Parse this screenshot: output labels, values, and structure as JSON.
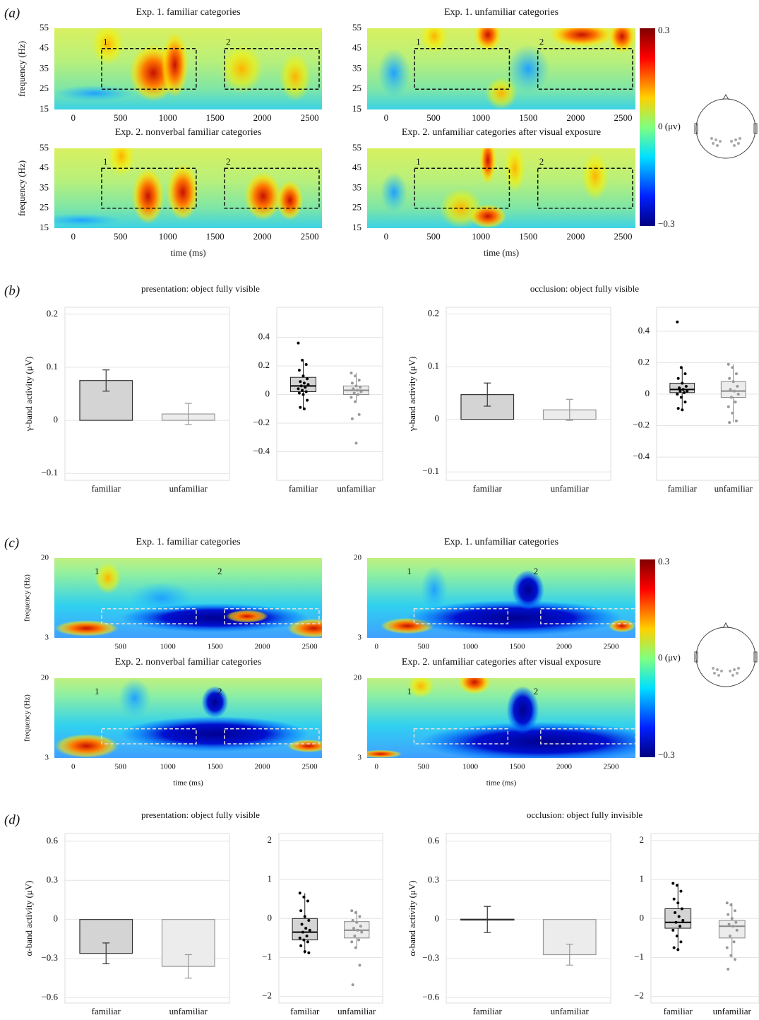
{
  "panel_labels": [
    "(a)",
    "(b)",
    "(c)",
    "(d)"
  ],
  "chart_data": [
    {
      "type": "heatmap",
      "title": "Exp. 1. familiar categories",
      "ylabel": "frequency (Hz)",
      "xlim": [
        -200,
        2630
      ],
      "xticks": [
        0,
        500,
        1000,
        1500,
        2000,
        2500
      ],
      "ylim": [
        15,
        55
      ],
      "yticks": [
        15,
        25,
        35,
        45,
        55
      ],
      "boxes": [
        {
          "label": "1",
          "xlim": [
            300,
            1300
          ],
          "ylim": [
            25,
            45
          ]
        },
        {
          "label": "2",
          "xlim": [
            1600,
            2600
          ],
          "ylim": [
            25,
            45
          ]
        }
      ]
    },
    {
      "type": "heatmap",
      "title": "Exp. 1. unfamiliar categories",
      "xlim": [
        -200,
        2630
      ],
      "xticks": [
        0,
        500,
        1000,
        1500,
        2000,
        2500
      ],
      "ylim": [
        15,
        55
      ],
      "yticks": [
        15,
        25,
        35,
        45,
        55
      ],
      "boxes": [
        {
          "label": "1",
          "xlim": [
            300,
            1300
          ],
          "ylim": [
            25,
            45
          ]
        },
        {
          "label": "2",
          "xlim": [
            1600,
            2600
          ],
          "ylim": [
            25,
            45
          ]
        }
      ]
    },
    {
      "type": "heatmap",
      "title": "Exp. 2. nonverbal familiar categories",
      "ylabel": "frequency (Hz)",
      "xlabel": "time (ms)",
      "xlim": [
        -200,
        2630
      ],
      "xticks": [
        0,
        500,
        1000,
        1500,
        2000,
        2500
      ],
      "ylim": [
        15,
        55
      ],
      "yticks": [
        15,
        25,
        35,
        45,
        55
      ],
      "boxes": [
        {
          "label": "1",
          "xlim": [
            300,
            1300
          ],
          "ylim": [
            25,
            45
          ]
        },
        {
          "label": "2",
          "xlim": [
            1600,
            2600
          ],
          "ylim": [
            25,
            45
          ]
        }
      ]
    },
    {
      "type": "heatmap",
      "title": "Exp. 2. unfamiliar categories after visual exposure",
      "xlabel": "time (ms)",
      "xlim": [
        -200,
        2630
      ],
      "xticks": [
        0,
        500,
        1000,
        1500,
        2000,
        2500
      ],
      "ylim": [
        15,
        55
      ],
      "yticks": [
        15,
        25,
        35,
        45,
        55
      ],
      "boxes": [
        {
          "label": "1",
          "xlim": [
            300,
            1300
          ],
          "ylim": [
            25,
            45
          ]
        },
        {
          "label": "2",
          "xlim": [
            1600,
            2600
          ],
          "ylim": [
            25,
            45
          ]
        }
      ]
    },
    {
      "type": "colorbar",
      "ylim": [
        -0.3,
        0.3
      ],
      "yticks": [
        {
          "value": -0.3,
          "label": "−0.3"
        },
        {
          "value": 0,
          "label": "0 (μv)"
        },
        0.3
      ]
    },
    {
      "type": "bar",
      "title": "presentation: object fully visible",
      "ylabel": "γ-band activity (μV)",
      "categories": [
        "familiar",
        "unfamiliar"
      ],
      "values": [
        0.075,
        0.012
      ],
      "errors": [
        0.02,
        0.02
      ],
      "colors": [
        "#d4d4d4",
        "#ececec"
      ],
      "edge_colors": [
        "#333333",
        "#999999"
      ],
      "ylim": [
        -0.113,
        0.213
      ],
      "yticks": [
        {
          "value": -0.1,
          "label": "−0.1"
        },
        0,
        0.1,
        0.2
      ],
      "grid": true
    },
    {
      "type": "box",
      "categories": [
        "familiar",
        "unfamiliar"
      ],
      "colors": [
        "#000000",
        "#999999"
      ],
      "ylim": [
        -0.6,
        0.61
      ],
      "yticks": [
        {
          "value": -0.4,
          "label": "−0.4"
        },
        {
          "value": -0.2,
          "label": "−0.2"
        },
        0,
        0.2,
        0.4
      ],
      "grid": true,
      "boxes": [
        {
          "q1": 0.02,
          "median": 0.06,
          "q3": 0.12,
          "whisker_low": -0.1,
          "whisker_high": 0.24,
          "points": [
            0.36,
            0.24,
            0.21,
            0.17,
            0.13,
            0.11,
            0.09,
            0.08,
            0.07,
            0.06,
            0.05,
            0.04,
            0.03,
            0.02,
            0.01,
            0.0,
            -0.04,
            -0.09,
            -0.1
          ]
        },
        {
          "q1": 0.0,
          "median": 0.03,
          "q3": 0.06,
          "whisker_low": -0.06,
          "whisker_high": 0.15,
          "points": [
            0.15,
            0.13,
            0.1,
            0.08,
            0.06,
            0.05,
            0.04,
            0.03,
            0.02,
            0.01,
            0.0,
            -0.02,
            -0.05,
            -0.14,
            -0.17,
            -0.34
          ]
        }
      ]
    },
    {
      "type": "bar",
      "title": "occlusion: object fully visible",
      "ylabel": "γ-band activity (μV)",
      "categories": [
        "familiar",
        "unfamiliar"
      ],
      "values": [
        0.047,
        0.018
      ],
      "errors": [
        0.022,
        0.02
      ],
      "colors": [
        "#d4d4d4",
        "#ececec"
      ],
      "edge_colors": [
        "#333333",
        "#999999"
      ],
      "ylim": [
        -0.116,
        0.213
      ],
      "yticks": [
        {
          "value": -0.1,
          "label": "−0.1"
        },
        0,
        0.1,
        0.2
      ],
      "grid": true
    },
    {
      "type": "box",
      "categories": [
        "familiar",
        "unfamiliar"
      ],
      "colors": [
        "#000000",
        "#999999"
      ],
      "ylim": [
        -0.548,
        0.553
      ],
      "yticks": [
        {
          "value": -0.4,
          "label": "−0.4"
        },
        {
          "value": -0.2,
          "label": "−0.2"
        },
        0,
        0.2,
        0.4
      ],
      "grid": true,
      "boxes": [
        {
          "q1": 0.01,
          "median": 0.03,
          "q3": 0.07,
          "whisker_low": -0.1,
          "whisker_high": 0.17,
          "points": [
            0.46,
            0.17,
            0.13,
            0.1,
            0.07,
            0.05,
            0.04,
            0.03,
            0.02,
            0.02,
            0.01,
            0.0,
            -0.02,
            -0.05,
            -0.09,
            -0.1
          ]
        },
        {
          "q1": -0.02,
          "median": 0.02,
          "q3": 0.08,
          "whisker_low": -0.18,
          "whisker_high": 0.19,
          "points": [
            0.19,
            0.17,
            0.13,
            0.1,
            0.08,
            0.05,
            0.03,
            0.02,
            0.0,
            -0.02,
            -0.05,
            -0.08,
            -0.12,
            -0.17,
            -0.18
          ]
        }
      ]
    },
    {
      "type": "heatmap",
      "title": "Exp. 1. familiar categories",
      "ylabel": "frequency (Hz)",
      "xlim": [
        -200,
        2630
      ],
      "xticks": [
        500,
        1000,
        1500,
        2000,
        2500
      ],
      "ylim": [
        3,
        20
      ],
      "yticks": [
        3,
        20
      ],
      "boxes": [
        {
          "label": "1",
          "xlim": [
            300,
            1300
          ],
          "ylim": [
            6,
            9.2
          ]
        },
        {
          "label": "2",
          "xlim": [
            1600,
            2600
          ],
          "ylim": [
            6,
            9.2
          ]
        }
      ]
    },
    {
      "type": "heatmap",
      "title": "Exp. 1. unfamiliar categories",
      "xlim": [
        -100,
        2760
      ],
      "xticks": [
        0,
        500,
        1000,
        1500,
        2000,
        2500
      ],
      "ylim": [
        3,
        20
      ],
      "yticks": [
        3,
        20
      ],
      "boxes": [
        {
          "label": "1",
          "xlim": [
            400,
            1400
          ],
          "ylim": [
            6,
            9.2
          ]
        },
        {
          "label": "2",
          "xlim": [
            1750,
            2760
          ],
          "ylim": [
            6,
            9.2
          ]
        }
      ]
    },
    {
      "type": "heatmap",
      "title": "Exp. 2. nonverbal familiar categories",
      "ylabel": "frequency (Hz)",
      "xlabel": "time (ms)",
      "xlim": [
        -200,
        2630
      ],
      "xticks": [
        0,
        500,
        1000,
        1500,
        2000,
        2500
      ],
      "ylim": [
        3,
        20
      ],
      "yticks": [
        3,
        20
      ],
      "boxes": [
        {
          "label": "1",
          "xlim": [
            300,
            1300
          ],
          "ylim": [
            6,
            9.2
          ]
        },
        {
          "label": "2",
          "xlim": [
            1600,
            2600
          ],
          "ylim": [
            6,
            9.2
          ]
        }
      ]
    },
    {
      "type": "heatmap",
      "title": "Exp. 2. unfamiliar categories after visual exposure",
      "xlabel": "time (ms)",
      "xlim": [
        -100,
        2760
      ],
      "xticks": [
        0,
        500,
        1000,
        1500,
        2000,
        2500
      ],
      "ylim": [
        3,
        20
      ],
      "yticks": [
        3,
        20
      ],
      "boxes": [
        {
          "label": "1",
          "xlim": [
            400,
            1400
          ],
          "ylim": [
            6,
            9.2
          ]
        },
        {
          "label": "2",
          "xlim": [
            1750,
            2760
          ],
          "ylim": [
            6,
            9.2
          ]
        }
      ]
    },
    {
      "type": "colorbar",
      "ylim": [
        -0.3,
        0.3
      ],
      "yticks": [
        {
          "value": -0.3,
          "label": "−0.3"
        },
        {
          "value": 0,
          "label": "0 (μv)"
        },
        0.3
      ]
    },
    {
      "type": "bar",
      "title": "presentation: object fully visible",
      "ylabel": "α-band activity (μV)",
      "categories": [
        "familiar",
        "unfamiliar"
      ],
      "values": [
        -0.26,
        -0.36
      ],
      "errors": [
        0.08,
        0.09
      ],
      "colors": [
        "#d4d4d4",
        "#ececec"
      ],
      "edge_colors": [
        "#333333",
        "#999999"
      ],
      "ylim": [
        -0.641,
        0.659
      ],
      "yticks": [
        {
          "value": -0.6,
          "label": "−0.6"
        },
        {
          "value": -0.3,
          "label": "−0.3"
        },
        0,
        0.3,
        0.6
      ],
      "grid": true
    },
    {
      "type": "box",
      "categories": [
        "familiar",
        "unfamiliar"
      ],
      "colors": [
        "#000000",
        "#999999"
      ],
      "ylim": [
        -2.17,
        2.18
      ],
      "yticks": [
        {
          "value": -2,
          "label": "−2"
        },
        {
          "value": -1,
          "label": "−1"
        },
        0,
        1,
        2
      ],
      "grid": true,
      "boxes": [
        {
          "q1": -0.55,
          "median": -0.35,
          "q3": 0.0,
          "whisker_low": -0.9,
          "whisker_high": 0.65,
          "points": [
            0.65,
            0.55,
            0.45,
            0.2,
            0.05,
            -0.05,
            -0.15,
            -0.25,
            -0.3,
            -0.35,
            -0.45,
            -0.5,
            -0.55,
            -0.6,
            -0.7,
            -0.85,
            -0.88
          ]
        },
        {
          "q1": -0.5,
          "median": -0.3,
          "q3": -0.08,
          "whisker_low": -0.75,
          "whisker_high": 0.2,
          "points": [
            0.2,
            0.15,
            0.05,
            -0.05,
            -0.1,
            -0.2,
            -0.25,
            -0.3,
            -0.35,
            -0.45,
            -0.55,
            -0.6,
            -0.75,
            -1.2,
            -1.7
          ]
        }
      ]
    },
    {
      "type": "bar",
      "title": "occlusion: object fully invisible",
      "ylabel": "α-band activity (μV)",
      "categories": [
        "familiar",
        "unfamiliar"
      ],
      "values": [
        0.0,
        -0.27
      ],
      "errors": [
        0.1,
        0.08
      ],
      "colors": [
        "#d4d4d4",
        "#ececec"
      ],
      "edge_colors": [
        "#333333",
        "#999999"
      ],
      "ylim": [
        -0.641,
        0.659
      ],
      "yticks": [
        {
          "value": -0.6,
          "label": "−0.6"
        },
        {
          "value": -0.3,
          "label": "−0.3"
        },
        0,
        0.3,
        0.6
      ],
      "grid": true
    },
    {
      "type": "box",
      "categories": [
        "familiar",
        "unfamiliar"
      ],
      "colors": [
        "#000000",
        "#999999"
      ],
      "ylim": [
        -2.17,
        2.18
      ],
      "yticks": [
        {
          "value": -2,
          "label": "−2"
        },
        {
          "value": -1,
          "label": "−1"
        },
        0,
        1,
        2
      ],
      "grid": true,
      "boxes": [
        {
          "q1": -0.25,
          "median": -0.1,
          "q3": 0.25,
          "whisker_low": -0.8,
          "whisker_high": 0.9,
          "points": [
            0.9,
            0.85,
            0.7,
            0.5,
            0.4,
            0.25,
            0.15,
            0.05,
            -0.05,
            -0.1,
            -0.2,
            -0.3,
            -0.45,
            -0.6,
            -0.75,
            -0.8
          ]
        },
        {
          "q1": -0.5,
          "median": -0.2,
          "q3": -0.05,
          "whisker_low": -1.0,
          "whisker_high": 0.4,
          "points": [
            0.4,
            0.35,
            0.2,
            0.1,
            0.0,
            -0.1,
            -0.15,
            -0.2,
            -0.3,
            -0.45,
            -0.6,
            -0.75,
            -0.95,
            -1.05,
            -1.3
          ]
        }
      ]
    }
  ]
}
